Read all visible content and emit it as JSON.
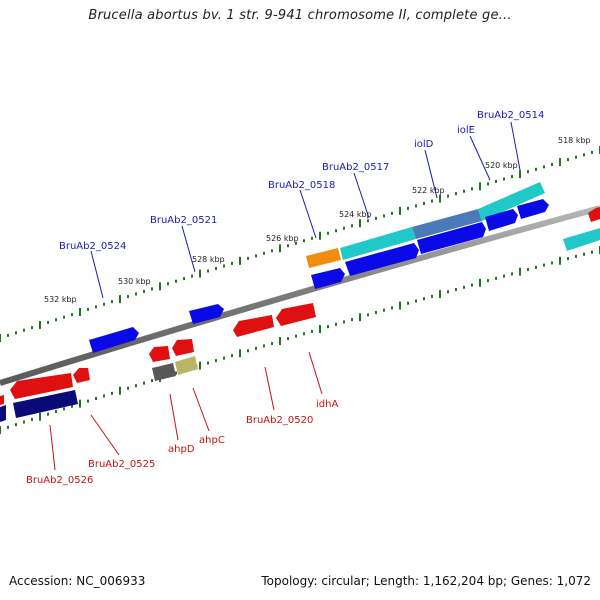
{
  "title": "Brucella abortus bv. 1 str. 9-941 chromosome II, complete ge...",
  "footer": {
    "accession": "Accession: NC_006933",
    "summary": "Topology: circular; Length: 1,162,204 bp; Genes: 1,072"
  },
  "scale_labels": [
    "518 kbp",
    "520 kbp",
    "522 kbp",
    "524 kbp",
    "526 kbp",
    "528 kbp",
    "530 kbp",
    "532 kbp"
  ],
  "gene_labels_top": [
    "BruAb2_0514",
    "iolE",
    "iolD",
    "BruAb2_0517",
    "BruAb2_0518",
    "BruAb2_0521",
    "BruAb2_0524"
  ],
  "gene_labels_bottom": [
    "idhA",
    "BruAb2_0520",
    "ahpC",
    "ahpD",
    "BruAb2_0525",
    "BruAb2_0526"
  ],
  "colors": {
    "forward": "#0a0ae6",
    "reverse": "#e01010",
    "cyan": "#20c8c8",
    "steel": "#4a7ab8",
    "orange": "#f08c10",
    "navy": "#0a0a78",
    "grey": "#585858",
    "khaki": "#b8b468",
    "backbone": "#808080",
    "ticks": "#1a7a1a",
    "label_top": "#1a1ab4",
    "label_bottom": "#c81010"
  }
}
